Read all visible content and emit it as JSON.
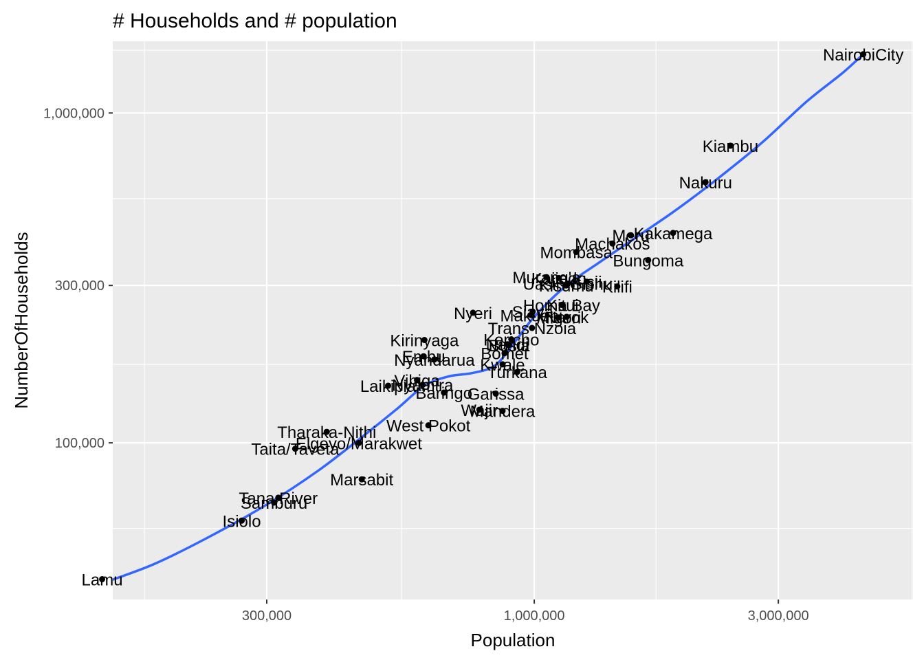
{
  "chart_data": {
    "type": "scatter",
    "title": "# Households and # population",
    "xlabel": "Population",
    "ylabel": "NumberOfHouseholds",
    "x_scale": "log10",
    "y_scale": "log10",
    "xlim": [
      150000,
      5500000
    ],
    "ylim": [
      33500,
      1650000
    ],
    "x_ticks": [
      {
        "value": 300000,
        "label": "300,000"
      },
      {
        "value": 1000000,
        "label": "1,000,000"
      },
      {
        "value": 3000000,
        "label": "3,000,000"
      }
    ],
    "x_minor_ticks": [
      173000,
      550000,
      1730000,
      5480000
    ],
    "y_ticks": [
      {
        "value": 100000,
        "label": "100,000"
      },
      {
        "value": 300000,
        "label": "300,000"
      },
      {
        "value": 1000000,
        "label": "1,000,000"
      }
    ],
    "y_minor_ticks": [
      55000,
      173000,
      550000,
      1550000
    ],
    "grid": true,
    "smooth_line_color": "#3366FF",
    "point_color": "#000000",
    "panel_color": "#EBEBEB",
    "points": [
      {
        "label": "NairobiCity",
        "x": 4397000,
        "y": 1507000
      },
      {
        "label": "Kiambu",
        "x": 2418000,
        "y": 796000
      },
      {
        "label": "Nakuru",
        "x": 2162000,
        "y": 617000
      },
      {
        "label": "Kakamega",
        "x": 1868000,
        "y": 433000
      },
      {
        "label": "Meru",
        "x": 1545000,
        "y": 426000
      },
      {
        "label": "Machakos",
        "x": 1422000,
        "y": 402000
      },
      {
        "label": "Mombasa",
        "x": 1208000,
        "y": 379000
      },
      {
        "label": "Bungoma",
        "x": 1670000,
        "y": 358000
      },
      {
        "label": "Murang'a",
        "x": 1057000,
        "y": 318000
      },
      {
        "label": "Kajiado",
        "x": 1117000,
        "y": 316000
      },
      {
        "label": "Kisii",
        "x": 1267000,
        "y": 308000
      },
      {
        "label": "Kitui",
        "x": 1136000,
        "y": 262000
      },
      {
        "label": "Uasin Gishu",
        "x": 1163000,
        "y": 304000
      },
      {
        "label": "Kilifi",
        "x": 1453000,
        "y": 298000
      },
      {
        "label": "Homa Bay",
        "x": 1131000,
        "y": 262000
      },
      {
        "label": "Kisumu",
        "x": 1155000,
        "y": 300000
      },
      {
        "label": "Siaya",
        "x": 993000,
        "y": 250000
      },
      {
        "label": "Migori",
        "x": 1116000,
        "y": 240000
      },
      {
        "label": "Makueni",
        "x": 987000,
        "y": 244000
      },
      {
        "label": "Narok",
        "x": 1157000,
        "y": 241000
      },
      {
        "label": "Nyeri",
        "x": 759000,
        "y": 248000
      },
      {
        "label": "Trans Nzoia",
        "x": 990000,
        "y": 223000
      },
      {
        "label": "Kericho",
        "x": 902000,
        "y": 206000
      },
      {
        "label": "Nandi",
        "x": 886000,
        "y": 199000
      },
      {
        "label": "Busia",
        "x": 893000,
        "y": 198000
      },
      {
        "label": "Bomet",
        "x": 875000,
        "y": 187000
      },
      {
        "label": "Kwale",
        "x": 867000,
        "y": 173000
      },
      {
        "label": "Turkana",
        "x": 926000,
        "y": 164000
      },
      {
        "label": "Kirinyaga",
        "x": 610000,
        "y": 205000
      },
      {
        "label": "Embu",
        "x": 608000,
        "y": 183000
      },
      {
        "label": "Nyandarua",
        "x": 638000,
        "y": 179000
      },
      {
        "label": "Vihiga",
        "x": 590000,
        "y": 155000
      },
      {
        "label": "Laikipia",
        "x": 518000,
        "y": 149000
      },
      {
        "label": "Nyamira",
        "x": 605000,
        "y": 150000
      },
      {
        "label": "Baringo",
        "x": 666000,
        "y": 142000
      },
      {
        "label": "Mandera",
        "x": 867000,
        "y": 125000
      },
      {
        "label": "Garissa",
        "x": 841000,
        "y": 141000
      },
      {
        "label": "Wajir",
        "x": 781000,
        "y": 126000
      },
      {
        "label": "West Pokot",
        "x": 621000,
        "y": 113000
      },
      {
        "label": "Tharaka-Nithi",
        "x": 393000,
        "y": 108000
      },
      {
        "label": "Elgeyo/Marakwet",
        "x": 454000,
        "y": 99900
      },
      {
        "label": "Taita/Taveta",
        "x": 341000,
        "y": 96000
      },
      {
        "label": "Marsabit",
        "x": 460000,
        "y": 77500
      },
      {
        "label": "Tana River",
        "x": 316000,
        "y": 68200
      },
      {
        "label": "Samburu",
        "x": 310000,
        "y": 65900
      },
      {
        "label": "Isiolo",
        "x": 268000,
        "y": 58100
      },
      {
        "label": "Lamu",
        "x": 143000,
        "y": 38600
      }
    ],
    "smooth_line": [
      {
        "x": 143000,
        "y": 37500
      },
      {
        "x": 180000,
        "y": 42800
      },
      {
        "x": 230000,
        "y": 51600
      },
      {
        "x": 300000,
        "y": 65000
      },
      {
        "x": 380000,
        "y": 82800
      },
      {
        "x": 460000,
        "y": 104000
      },
      {
        "x": 540000,
        "y": 127000
      },
      {
        "x": 610000,
        "y": 149000
      },
      {
        "x": 680000,
        "y": 159000
      },
      {
        "x": 760000,
        "y": 163000
      },
      {
        "x": 840000,
        "y": 172000
      },
      {
        "x": 920000,
        "y": 204000
      },
      {
        "x": 1000000,
        "y": 241000
      },
      {
        "x": 1150000,
        "y": 298000
      },
      {
        "x": 1350000,
        "y": 355000
      },
      {
        "x": 1600000,
        "y": 425000
      },
      {
        "x": 1900000,
        "y": 510000
      },
      {
        "x": 2300000,
        "y": 638000
      },
      {
        "x": 2800000,
        "y": 818000
      },
      {
        "x": 3400000,
        "y": 1080000
      },
      {
        "x": 4000000,
        "y": 1320000
      },
      {
        "x": 4400000,
        "y": 1510000
      }
    ]
  }
}
